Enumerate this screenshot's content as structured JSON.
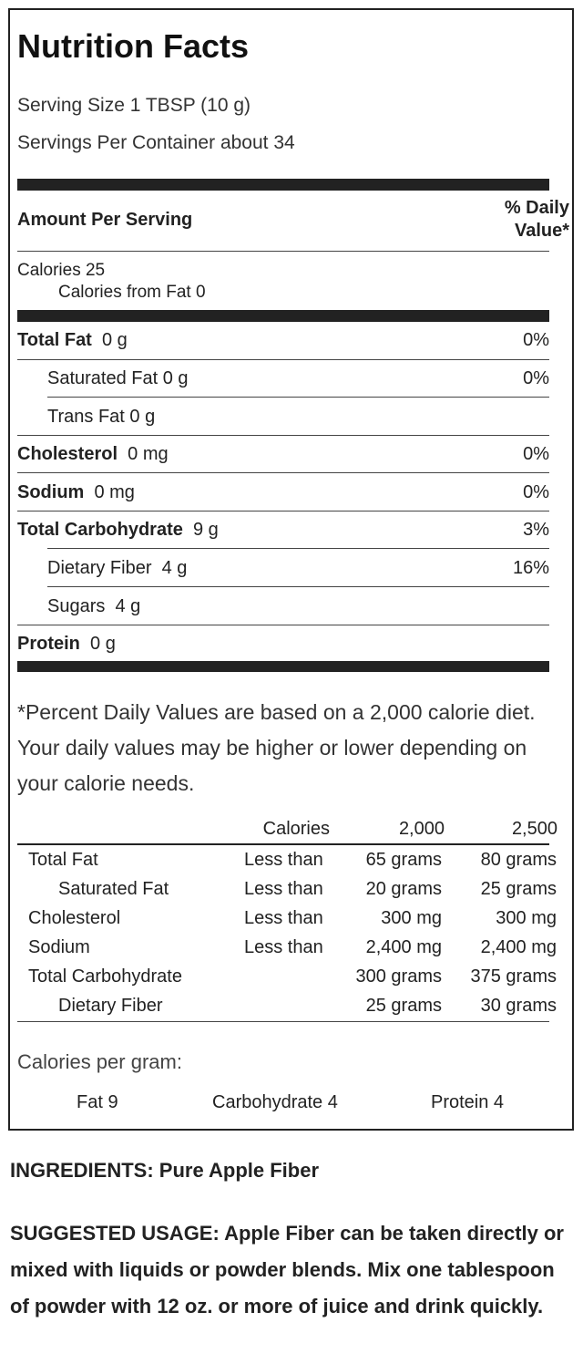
{
  "label": {
    "title": "Nutrition Facts",
    "serving_size": "Serving Size 1 TBSP (10 g)",
    "servings_per_container": "Servings Per Container about 34",
    "amount_per_serving": "Amount Per Serving",
    "daily_value_header_1": "% Daily",
    "daily_value_header_2": "Value*",
    "calories": "Calories 25",
    "calories_from_fat": "Calories from Fat 0",
    "nutrients": [
      {
        "name": "Total Fat",
        "amount": "0 g",
        "pct": "0%"
      },
      {
        "name": "Saturated Fat",
        "amount": "0 g",
        "pct": "0%"
      },
      {
        "name": "Trans Fat",
        "amount": "0 g",
        "pct": ""
      },
      {
        "name": "Cholesterol",
        "amount": "0 mg",
        "pct": "0%"
      },
      {
        "name": "Sodium",
        "amount": "0 mg",
        "pct": "0%"
      },
      {
        "name": "Total Carbohydrate",
        "amount": "9 g",
        "pct": "3%"
      },
      {
        "name": "Dietary Fiber",
        "amount": "4 g",
        "pct": "16%"
      },
      {
        "name": "Sugars",
        "amount": "4 g",
        "pct": ""
      },
      {
        "name": "Protein",
        "amount": "0 g",
        "pct": ""
      }
    ],
    "footnote": "*Percent Daily Values are based on a 2,000 calorie diet. Your daily values may be higher or lower depending on your calorie needs.",
    "dv_table": {
      "header": [
        "Calories",
        "2,000",
        "2,500"
      ],
      "rows": [
        {
          "name": "Total Fat",
          "limit": "Less than",
          "v2000": "65 grams",
          "v2500": "80 grams"
        },
        {
          "name": "Saturated Fat",
          "limit": "Less than",
          "v2000": "20 grams",
          "v2500": "25 grams"
        },
        {
          "name": "Cholesterol",
          "limit": "Less than",
          "v2000": "300 mg",
          "v2500": "300 mg"
        },
        {
          "name": "Sodium",
          "limit": "Less than",
          "v2000": "2,400 mg",
          "v2500": "2,400 mg"
        },
        {
          "name": "Total Carbohydrate",
          "limit": "",
          "v2000": "300 grams",
          "v2500": "375 grams"
        },
        {
          "name": "Dietary Fiber",
          "limit": "",
          "v2000": "25 grams",
          "v2500": "30 grams"
        }
      ]
    },
    "calories_per_gram": "Calories per gram:",
    "cpg_fat": "Fat 9",
    "cpg_carb": "Carbohydrate 4",
    "cpg_protein": "Protein 4"
  },
  "ingredients": "INGREDIENTS: Pure Apple Fiber",
  "suggested_usage": "SUGGESTED USAGE: Apple Fiber can be taken directly or mixed with liquids or powder blends. Mix one tablespoon of powder with 12 oz. or more of juice and drink quickly."
}
